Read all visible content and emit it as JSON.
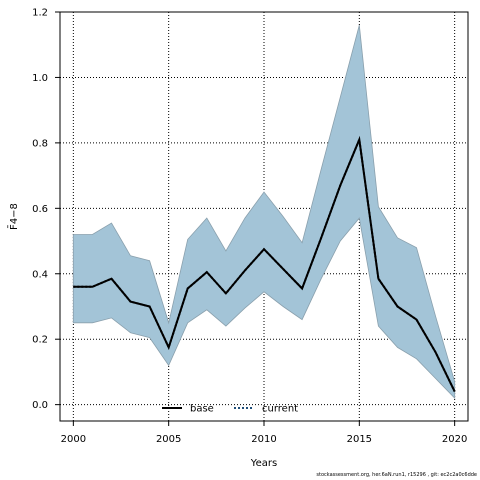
{
  "chart_data": {
    "type": "area",
    "ylabel": "F̄4−8",
    "xlabel": "Years",
    "xlim": [
      1999.3,
      2020.7
    ],
    "ylim": [
      -0.05,
      1.2
    ],
    "x_ticks": [
      2000,
      2005,
      2010,
      2015,
      2020
    ],
    "y_ticks": [
      0.0,
      0.2,
      0.4,
      0.6,
      0.8,
      1.0,
      1.2
    ],
    "grid": true,
    "legend_position": "bottom-center",
    "x": [
      2000,
      2001,
      2002,
      2003,
      2004,
      2005,
      2006,
      2007,
      2008,
      2009,
      2010,
      2011,
      2012,
      2013,
      2014,
      2015,
      2016,
      2017,
      2018,
      2019,
      2020
    ],
    "band": {
      "upper": [
        0.52,
        0.52,
        0.555,
        0.455,
        0.44,
        0.25,
        0.505,
        0.57,
        0.47,
        0.57,
        0.65,
        0.575,
        0.495,
        0.72,
        0.94,
        1.16,
        0.605,
        0.51,
        0.48,
        0.27,
        0.07
      ],
      "lower": [
        0.25,
        0.25,
        0.265,
        0.22,
        0.205,
        0.12,
        0.25,
        0.29,
        0.24,
        0.295,
        0.345,
        0.3,
        0.26,
        0.385,
        0.5,
        0.57,
        0.24,
        0.175,
        0.14,
        0.08,
        0.02
      ],
      "fill_color": "#a3c4d7",
      "edge_color": "#8aa0ad"
    },
    "series": [
      {
        "name": "base",
        "style": "solid",
        "color": "#000000",
        "values": [
          0.36,
          0.36,
          0.385,
          0.315,
          0.3,
          0.175,
          0.355,
          0.405,
          0.34,
          0.41,
          0.475,
          0.415,
          0.355,
          0.51,
          0.67,
          0.81,
          0.385,
          0.3,
          0.26,
          0.16,
          0.04
        ]
      },
      {
        "name": "current",
        "style": "dotted",
        "color": "#000000",
        "dot_color": "#1f4e79",
        "values": [
          0.36,
          0.36,
          0.385,
          0.315,
          0.3,
          0.175,
          0.355,
          0.405,
          0.34,
          0.41,
          0.475,
          0.415,
          0.355,
          0.51,
          0.67,
          0.81,
          0.385,
          0.3,
          0.26,
          0.16,
          0.04
        ]
      }
    ]
  },
  "footer": "stockassessment.org,  her.6aN.run1,  r15296 ,  git:  ec2c2a0c6dde"
}
